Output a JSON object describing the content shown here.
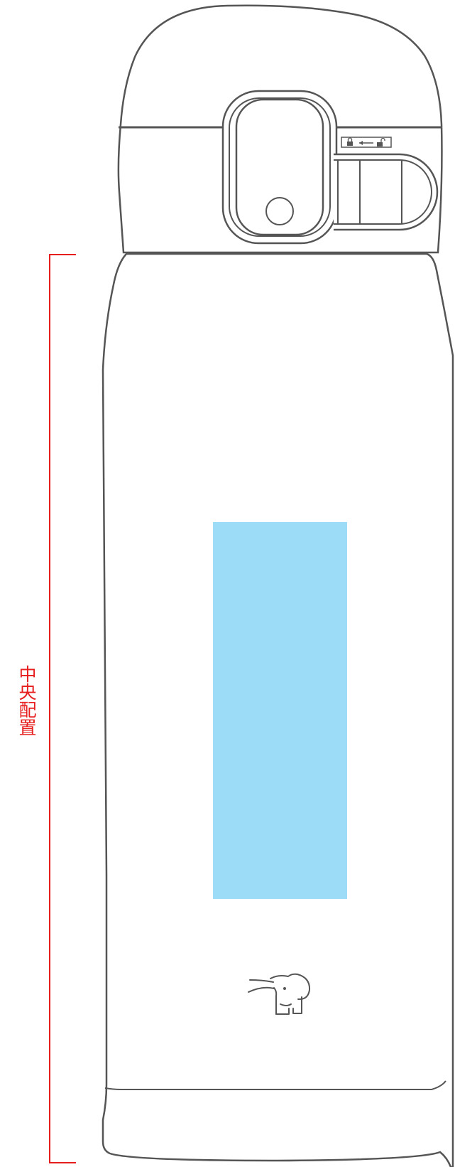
{
  "annotation": {
    "label": "中央配置"
  },
  "colors": {
    "outline": "#555555",
    "accent_red": "#e61e1e",
    "print_area": "#9cdcf6"
  },
  "icons": [
    "lock-icon",
    "left-arrow-icon",
    "unlock-icon",
    "elephant-logo-icon"
  ]
}
